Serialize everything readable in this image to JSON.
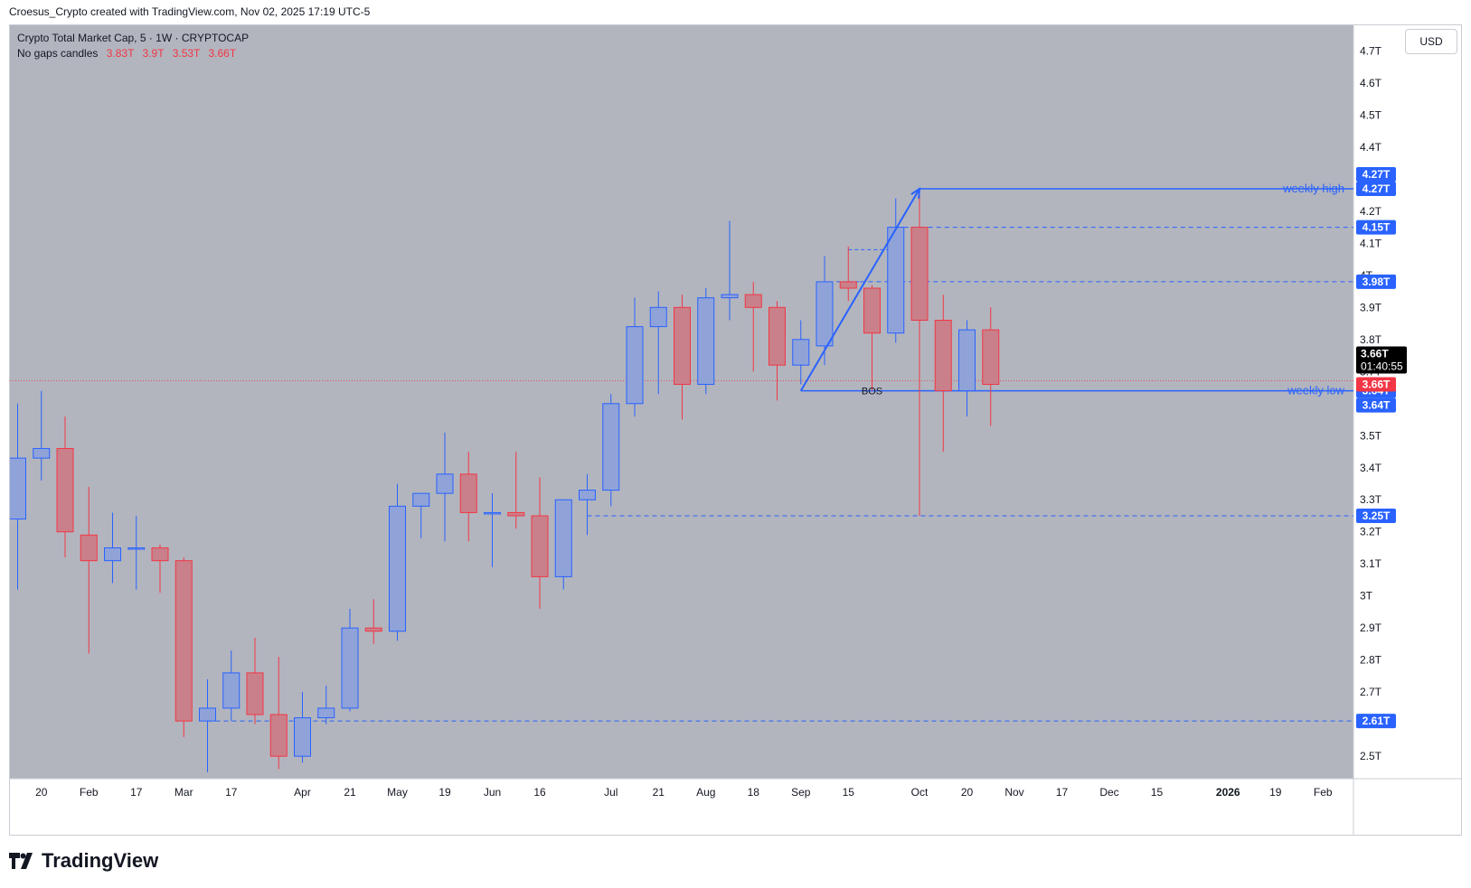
{
  "header": {
    "byline": "Croesus_Crypto created with TradingView.com, Nov 02, 2025 17:19 UTC-5"
  },
  "legend": {
    "title": "Crypto Total Market Cap, 5 · 1W · CRYPTOCAP",
    "subtitle": "No gaps candles",
    "ohlc": [
      "3.83T",
      "3.9T",
      "3.53T",
      "3.66T"
    ]
  },
  "currency_button": "USD",
  "brand": "TradingView",
  "colors": {
    "bull": "#2962ff",
    "bear": "#f23645",
    "bull_fill": "#8fa3d9",
    "bear_fill": "#c9808a",
    "plot_bg": "#b2b5be",
    "line": "#2962ff"
  },
  "chart_data": {
    "type": "candlestick",
    "interval": "1W",
    "y_unit": "T USD",
    "ylim": [
      2.43,
      4.78
    ],
    "y_ticks": [
      2.5,
      2.6,
      2.7,
      2.8,
      2.9,
      3.0,
      3.1,
      3.2,
      3.3,
      3.4,
      3.5,
      3.6,
      3.7,
      3.8,
      3.9,
      4.0,
      4.1,
      4.2,
      4.3,
      4.4,
      4.5,
      4.6,
      4.7
    ],
    "y_tick_labels": [
      "2.5T",
      "2.6T",
      "2.7T",
      "2.8T",
      "2.9T",
      "3T",
      "3.1T",
      "3.2T",
      "3.3T",
      "3.4T",
      "3.5T",
      "3.6T",
      "3.7T",
      "3.8T",
      "3.9T",
      "4T",
      "4.1T",
      "4.2T",
      "4.3T",
      "4.4T",
      "4.5T",
      "4.6T",
      "4.7T"
    ],
    "x_ticks": [
      {
        "i": 1,
        "label": "20"
      },
      {
        "i": 3,
        "label": "Feb"
      },
      {
        "i": 5,
        "label": "17"
      },
      {
        "i": 7,
        "label": "Mar"
      },
      {
        "i": 9,
        "label": "17"
      },
      {
        "i": 12,
        "label": "Apr"
      },
      {
        "i": 14,
        "label": "21"
      },
      {
        "i": 16,
        "label": "May"
      },
      {
        "i": 18,
        "label": "19"
      },
      {
        "i": 20,
        "label": "Jun"
      },
      {
        "i": 22,
        "label": "16"
      },
      {
        "i": 25,
        "label": "Jul"
      },
      {
        "i": 27,
        "label": "21"
      },
      {
        "i": 29,
        "label": "Aug"
      },
      {
        "i": 31,
        "label": "18"
      },
      {
        "i": 33,
        "label": "Sep"
      },
      {
        "i": 35,
        "label": "15"
      },
      {
        "i": 38,
        "label": "Oct"
      },
      {
        "i": 40,
        "label": "20"
      },
      {
        "i": 42,
        "label": "Nov"
      },
      {
        "i": 44,
        "label": "17"
      },
      {
        "i": 46,
        "label": "Dec"
      },
      {
        "i": 48,
        "label": "15"
      },
      {
        "i": 51,
        "label": "2026"
      },
      {
        "i": 53,
        "label": "19"
      },
      {
        "i": 55,
        "label": "Feb"
      }
    ],
    "candles": [
      {
        "i": 0,
        "o": 3.24,
        "h": 3.6,
        "l": 3.02,
        "c": 3.43
      },
      {
        "i": 1,
        "o": 3.43,
        "h": 3.64,
        "l": 3.36,
        "c": 3.46
      },
      {
        "i": 2,
        "o": 3.46,
        "h": 3.56,
        "l": 3.12,
        "c": 3.2
      },
      {
        "i": 3,
        "o": 3.19,
        "h": 3.34,
        "l": 2.82,
        "c": 3.11
      },
      {
        "i": 4,
        "o": 3.11,
        "h": 3.26,
        "l": 3.04,
        "c": 3.15
      },
      {
        "i": 5,
        "o": 3.15,
        "h": 3.25,
        "l": 3.02,
        "c": 3.15
      },
      {
        "i": 6,
        "o": 3.15,
        "h": 3.16,
        "l": 3.01,
        "c": 3.11
      },
      {
        "i": 7,
        "o": 3.11,
        "h": 3.12,
        "l": 2.56,
        "c": 2.61
      },
      {
        "i": 8,
        "o": 2.61,
        "h": 2.74,
        "l": 2.45,
        "c": 2.65
      },
      {
        "i": 9,
        "o": 2.65,
        "h": 2.83,
        "l": 2.61,
        "c": 2.76
      },
      {
        "i": 10,
        "o": 2.76,
        "h": 2.87,
        "l": 2.6,
        "c": 2.63
      },
      {
        "i": 11,
        "o": 2.63,
        "h": 2.81,
        "l": 2.46,
        "c": 2.5
      },
      {
        "i": 12,
        "o": 2.5,
        "h": 2.7,
        "l": 2.48,
        "c": 2.62
      },
      {
        "i": 13,
        "o": 2.62,
        "h": 2.72,
        "l": 2.6,
        "c": 2.65
      },
      {
        "i": 14,
        "o": 2.65,
        "h": 2.96,
        "l": 2.64,
        "c": 2.9
      },
      {
        "i": 15,
        "o": 2.9,
        "h": 2.99,
        "l": 2.85,
        "c": 2.89
      },
      {
        "i": 16,
        "o": 2.89,
        "h": 3.35,
        "l": 2.86,
        "c": 3.28
      },
      {
        "i": 17,
        "o": 3.28,
        "h": 3.32,
        "l": 3.18,
        "c": 3.32
      },
      {
        "i": 18,
        "o": 3.32,
        "h": 3.51,
        "l": 3.17,
        "c": 3.38
      },
      {
        "i": 19,
        "o": 3.38,
        "h": 3.45,
        "l": 3.17,
        "c": 3.26
      },
      {
        "i": 20,
        "o": 3.26,
        "h": 3.32,
        "l": 3.09,
        "c": 3.26
      },
      {
        "i": 21,
        "o": 3.26,
        "h": 3.45,
        "l": 3.21,
        "c": 3.25
      },
      {
        "i": 22,
        "o": 3.25,
        "h": 3.37,
        "l": 2.96,
        "c": 3.06
      },
      {
        "i": 23,
        "o": 3.06,
        "h": 3.3,
        "l": 3.02,
        "c": 3.3
      },
      {
        "i": 24,
        "o": 3.3,
        "h": 3.38,
        "l": 3.19,
        "c": 3.33
      },
      {
        "i": 25,
        "o": 3.33,
        "h": 3.63,
        "l": 3.28,
        "c": 3.6
      },
      {
        "i": 26,
        "o": 3.6,
        "h": 3.93,
        "l": 3.56,
        "c": 3.84
      },
      {
        "i": 27,
        "o": 3.84,
        "h": 3.95,
        "l": 3.63,
        "c": 3.9
      },
      {
        "i": 28,
        "o": 3.9,
        "h": 3.94,
        "l": 3.55,
        "c": 3.66
      },
      {
        "i": 29,
        "o": 3.66,
        "h": 3.96,
        "l": 3.63,
        "c": 3.93
      },
      {
        "i": 30,
        "o": 3.93,
        "h": 4.17,
        "l": 3.86,
        "c": 3.94
      },
      {
        "i": 31,
        "o": 3.94,
        "h": 3.98,
        "l": 3.7,
        "c": 3.9
      },
      {
        "i": 32,
        "o": 3.9,
        "h": 3.92,
        "l": 3.61,
        "c": 3.72
      },
      {
        "i": 33,
        "o": 3.72,
        "h": 3.86,
        "l": 3.66,
        "c": 3.8
      },
      {
        "i": 34,
        "o": 3.78,
        "h": 4.06,
        "l": 3.72,
        "c": 3.98
      },
      {
        "i": 35,
        "o": 3.98,
        "h": 4.09,
        "l": 3.92,
        "c": 3.96
      },
      {
        "i": 36,
        "o": 3.96,
        "h": 3.97,
        "l": 3.64,
        "c": 3.82
      },
      {
        "i": 37,
        "o": 3.82,
        "h": 4.24,
        "l": 3.79,
        "c": 4.15
      },
      {
        "i": 38,
        "o": 4.15,
        "h": 4.27,
        "l": 3.25,
        "c": 3.86
      },
      {
        "i": 39,
        "o": 3.86,
        "h": 3.94,
        "l": 3.45,
        "c": 3.64
      },
      {
        "i": 40,
        "o": 3.64,
        "h": 3.86,
        "l": 3.56,
        "c": 3.83
      },
      {
        "i": 41,
        "o": 3.83,
        "h": 3.9,
        "l": 3.53,
        "c": 3.66
      }
    ],
    "levels": [
      {
        "value": 4.27,
        "label": "4.27T",
        "style": "solid",
        "from_i": 38,
        "annotation": "weekly high"
      },
      {
        "value": 4.15,
        "label": "4.15T",
        "style": "dashed",
        "from_i": 37
      },
      {
        "value": 3.98,
        "label": "3.98T",
        "style": "dashed",
        "from_i": 35.5
      },
      {
        "value": 3.64,
        "label": "3.64T",
        "style": "solid",
        "from_i": 33,
        "annotation": "weekly low"
      },
      {
        "value": 3.25,
        "label": "3.25T",
        "style": "dashed",
        "from_i": 24
      },
      {
        "value": 2.61,
        "label": "2.61T",
        "style": "dashed",
        "from_i": 8
      }
    ],
    "extra_axis_labels": [
      {
        "value": 4.27,
        "label": "4.27T",
        "offset": -1
      },
      {
        "value": 3.64,
        "label": "3.64T",
        "offset": 1
      }
    ],
    "short_dashes": [
      {
        "value": 4.08,
        "from_i": 35,
        "to_i": 37
      },
      {
        "value": 3.98,
        "from_i": 34.5,
        "to_i": 35.5
      }
    ],
    "trend_line": {
      "from": {
        "i": 33,
        "value": 3.64
      },
      "to": {
        "i": 38,
        "value": 4.27
      }
    },
    "bos_label": {
      "text": "BOS",
      "i": 36
    },
    "current_price": {
      "value": 3.66,
      "label": "3.66T",
      "countdown": "01:40:55"
    }
  }
}
